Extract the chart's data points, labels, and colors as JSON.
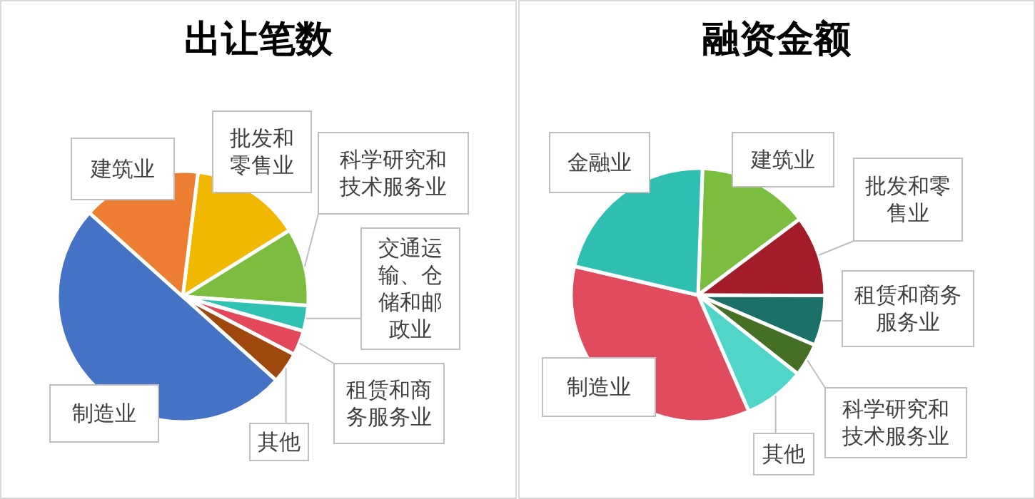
{
  "chart_data": [
    {
      "type": "pie",
      "title": "出让笔数",
      "categories": [
        "批发和零售业",
        "科学研究和技术服务业",
        "交通运输、仓储和邮政业",
        "租赁和商务服务业",
        "其他",
        "制造业",
        "建筑业"
      ],
      "values": [
        14.2,
        10,
        3.3,
        3.2,
        4,
        50,
        15.3
      ],
      "colors": [
        "#f0b800",
        "#7abd3f",
        "#2fc1b4",
        "#e2475a",
        "#9e480e",
        "#4472c4",
        "#ed7d31"
      ]
    },
    {
      "type": "pie",
      "title": "融资金额",
      "categories": [
        "建筑业",
        "批发和零售业",
        "租赁和商务服务业",
        "科学研究和技术服务业",
        "其他",
        "制造业",
        "金融业"
      ],
      "values": [
        14.2,
        10.3,
        6.4,
        4.2,
        7.8,
        35.2,
        21.9
      ],
      "colors": [
        "#7abd3f",
        "#a31c2a",
        "#1c706a",
        "#456f25",
        "#4fd6c9",
        "#e04b5e",
        "#2fbfb2"
      ]
    }
  ]
}
